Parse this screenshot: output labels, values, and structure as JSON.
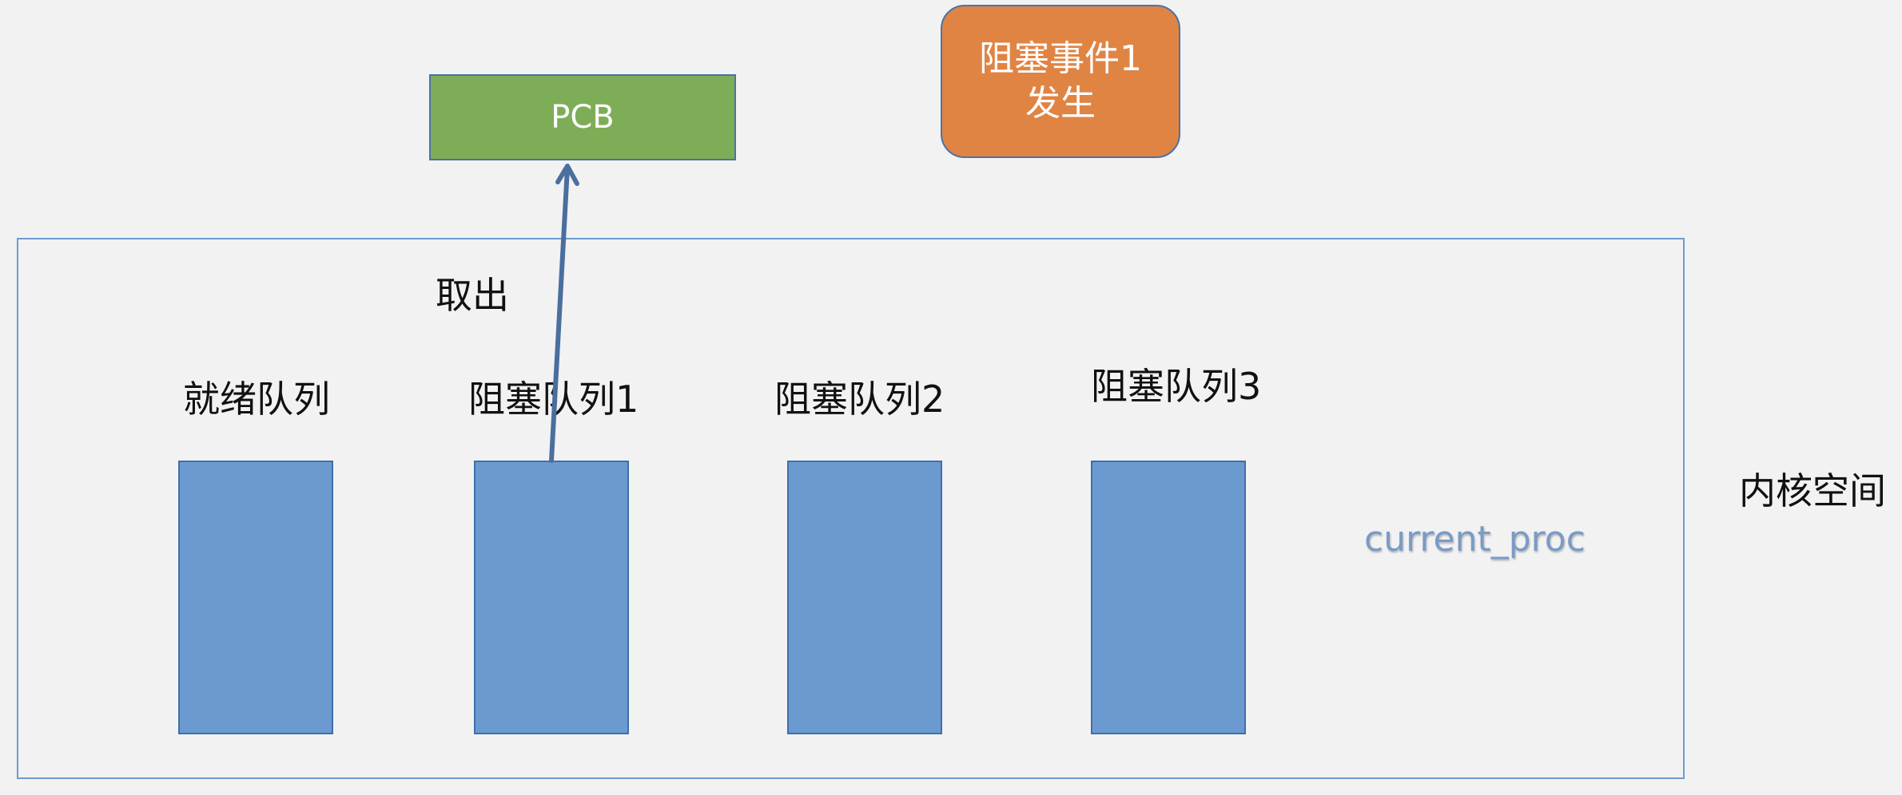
{
  "pcb": {
    "label": "PCB"
  },
  "event": {
    "line1": "阻塞事件1",
    "line2": "发生"
  },
  "arrow_label": "取出",
  "queues": [
    {
      "label": "就绪队列"
    },
    {
      "label": "阻塞队列1"
    },
    {
      "label": "阻塞队列2"
    },
    {
      "label": "阻塞队列3"
    }
  ],
  "current_proc": "current_proc",
  "kernel_space": "内核空间",
  "colors": {
    "pcb_fill": "#7ead57",
    "event_fill": "#e08444",
    "queue_fill": "#6a9ad0",
    "border": "#4a72a8",
    "current_proc_text": "#7a9bc6"
  }
}
